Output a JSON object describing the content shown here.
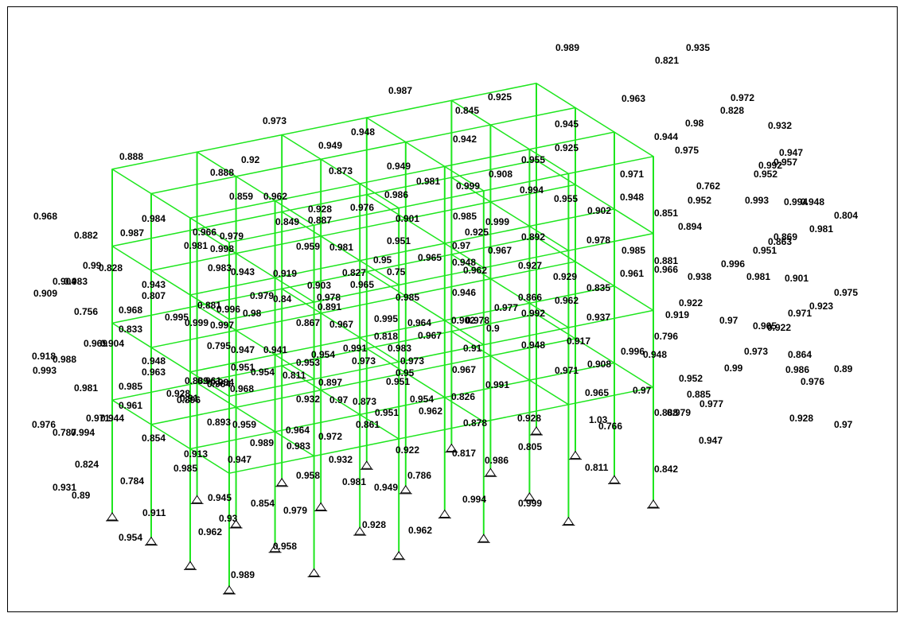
{
  "colors": {
    "member": "#1ee61e",
    "text": "#000000",
    "background": "#ffffff"
  },
  "labels": [
    "0.989",
    "0.935",
    "0.821",
    "0.987",
    "0.925",
    "0.963",
    "0.972",
    "0.845",
    "0.973",
    "0.948",
    "0.945",
    "0.98",
    "0.828",
    "0.932",
    "0.949",
    "0.942",
    "0.944",
    "0.975",
    "0.888",
    "0.92",
    "0.925",
    "0.947",
    "0.957",
    "0.888",
    "0.873",
    "0.949",
    "0.955",
    "0.908",
    "0.971",
    "0.992",
    "0.981",
    "0.999",
    "0.952",
    "0.994",
    "0.859",
    "0.962",
    "0.986",
    "0.762",
    "0.955",
    "0.948",
    "0.993",
    "0.994",
    "0.928",
    "0.976",
    "0.902",
    "0.952",
    "0.948",
    "0.968",
    "0.984",
    "0.849",
    "0.887",
    "0.901",
    "0.985",
    "0.851",
    "0.804",
    "0.999",
    "0.882",
    "0.987",
    "0.981",
    "0.966",
    "0.979",
    "0.925",
    "0.894",
    "0.981",
    "0.998",
    "0.892",
    "0.978",
    "0.869",
    "0.959",
    "0.981",
    "0.951",
    "0.967",
    "0.863",
    "0.99",
    "0.828",
    "0.965",
    "0.97",
    "0.985",
    "0.951",
    "0.95",
    "0.948",
    "0.881",
    "0.996",
    "0.983",
    "0.943",
    "0.919",
    "0.827",
    "0.75",
    "0.962",
    "0.927",
    "0.966",
    "0.904",
    "0.983",
    "0.903",
    "0.965",
    "0.929",
    "0.835",
    "0.961",
    "0.938",
    "0.981",
    "0.901",
    "0.909",
    "0.943",
    "0.807",
    "0.978",
    "0.946",
    "0.866",
    "0.962",
    "0.975",
    "0.881",
    "0.979",
    "0.84",
    "0.891",
    "0.985",
    "0.977",
    "0.922",
    "0.923",
    "0.756",
    "0.968",
    "0.996",
    "0.98",
    "0.992",
    "0.919",
    "0.937",
    "0.971",
    "0.995",
    "0.999",
    "0.997",
    "0.995",
    "0.964",
    "0.902",
    "0.978",
    "0.97",
    "0.922",
    "0.833",
    "0.867",
    "0.967",
    "0.9",
    "0.965",
    "0.818",
    "0.967",
    "0.917",
    "0.996",
    "0.796",
    "0.969",
    "0.904",
    "0.795",
    "0.947",
    "0.941",
    "0.991",
    "0.91",
    "0.948",
    "0.948",
    "0.864",
    "0.918",
    "0.988",
    "0.954",
    "0.983",
    "0.973",
    "0.973",
    "0.948",
    "0.953",
    "0.973",
    "0.908",
    "0.993",
    "0.963",
    "0.951",
    "0.954",
    "0.811",
    "0.967",
    "0.951",
    "0.99",
    "0.986",
    "0.89",
    "0.889",
    "0.964",
    "0.961",
    "0.984",
    "0.971",
    "0.897",
    "0.95",
    "0.952",
    "0.981",
    "0.985",
    "0.968",
    "0.976",
    "0.928",
    "0.91",
    "0.991",
    "0.885",
    "0.961",
    "0.932",
    "0.97",
    "0.954",
    "0.965",
    "0.97",
    "0.977",
    "0.873",
    "0.826",
    "0.951",
    "0.962",
    "0.888",
    "0.979",
    "0.896",
    "0.893",
    "0.878",
    "0.928",
    "0.928",
    "0.976",
    "0.787",
    "0.994",
    "0.959",
    "0.861",
    "1.03",
    "0.766",
    "0.97",
    "0.971",
    "0.944",
    "0.964",
    "0.972",
    "0.854",
    "0.989",
    "0.983",
    "0.922",
    "0.817",
    "0.805",
    "0.947",
    "0.824",
    "0.913",
    "0.947",
    "0.985",
    "0.932",
    "0.986",
    "0.811",
    "0.931",
    "0.784",
    "0.958",
    "0.981",
    "0.786",
    "0.842",
    "0.89",
    "0.949",
    "0.945",
    "0.854",
    "0.994",
    "0.999",
    "0.911",
    "0.979",
    "0.93",
    "0.928",
    "0.962",
    "0.962",
    "0.954",
    "0.958",
    "0.989"
  ]
}
